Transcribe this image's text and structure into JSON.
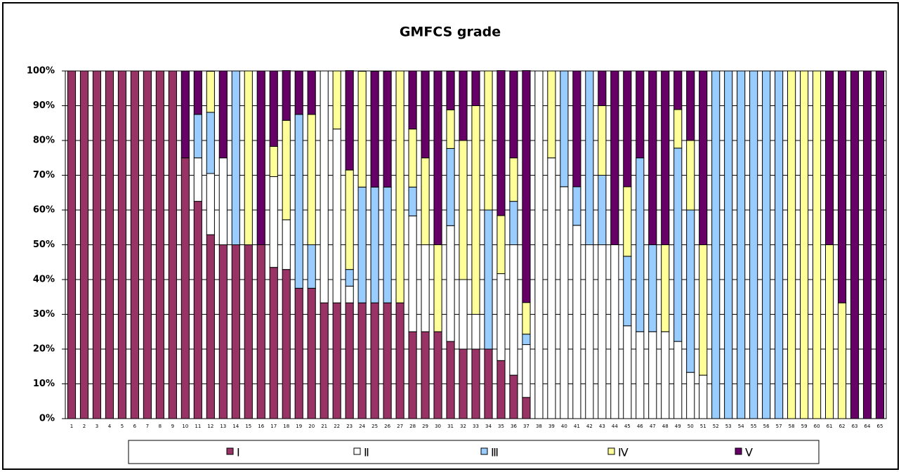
{
  "chart_data": {
    "type": "stacked_bar_100",
    "title": "GMFCS grade",
    "categories": [
      "1",
      "2",
      "3",
      "4",
      "5",
      "6",
      "7",
      "8",
      "9",
      "10",
      "11",
      "12",
      "13",
      "14",
      "15",
      "16",
      "17",
      "18",
      "19",
      "20",
      "21",
      "22",
      "23",
      "24",
      "25",
      "26",
      "27",
      "28",
      "29",
      "30",
      "31",
      "32",
      "33",
      "34",
      "35",
      "36",
      "37",
      "38",
      "39",
      "40",
      "41",
      "42",
      "43",
      "44",
      "45",
      "46",
      "47",
      "48",
      "49",
      "50",
      "51",
      "52",
      "53",
      "54",
      "55",
      "56",
      "57",
      "58",
      "59",
      "60",
      "61",
      "62",
      "63",
      "64",
      "65"
    ],
    "series": [
      {
        "name": "Ⅰ",
        "color": "#993366",
        "values": [
          100,
          100,
          100,
          100,
          100,
          100,
          100,
          100,
          100,
          75,
          62.5,
          52.9,
          50,
          50,
          50,
          50,
          43.5,
          42.9,
          37.5,
          37.5,
          33.3,
          33.3,
          33.3,
          33.3,
          33.3,
          33.3,
          33.3,
          25,
          25,
          25,
          22.2,
          20,
          20,
          20,
          16.7,
          12.5,
          6.1,
          0,
          0,
          0,
          0,
          0,
          0,
          0,
          0,
          0,
          0,
          0,
          0,
          0,
          0,
          0,
          0,
          0,
          0,
          0,
          0,
          0,
          0,
          0,
          0,
          0,
          0,
          0,
          0
        ]
      },
      {
        "name": "Ⅱ",
        "color": "#ffffff",
        "values": [
          0,
          0,
          0,
          0,
          0,
          0,
          0,
          0,
          0,
          0,
          12.5,
          17.6,
          25,
          0,
          0,
          0,
          26.1,
          14.3,
          0,
          0,
          66.7,
          50,
          4.8,
          0,
          0,
          0,
          0,
          33.3,
          25,
          0,
          33.3,
          20,
          10,
          0,
          25,
          37.5,
          15.2,
          100,
          75,
          66.7,
          55.6,
          50,
          50,
          50,
          26.7,
          25,
          25,
          25,
          22.2,
          13.3,
          12.5,
          0,
          0,
          0,
          0,
          0,
          0,
          0,
          0,
          0,
          0,
          0,
          0,
          0,
          0
        ]
      },
      {
        "name": "Ⅲ",
        "color": "#99ccff",
        "values": [
          0,
          0,
          0,
          0,
          0,
          0,
          0,
          0,
          0,
          0,
          12.5,
          17.6,
          0,
          50,
          0,
          0,
          0,
          0,
          50,
          12.5,
          0,
          0,
          4.8,
          33.3,
          33.3,
          33.3,
          0,
          8.3,
          0,
          0,
          22.2,
          0,
          0,
          40,
          0,
          12.5,
          3,
          0,
          0,
          33.3,
          11.1,
          50,
          20,
          0,
          20,
          50,
          25,
          0,
          55.6,
          46.7,
          0,
          100,
          100,
          100,
          100,
          100,
          100,
          0,
          0,
          0,
          0,
          0,
          0,
          0,
          0
        ]
      },
      {
        "name": "Ⅳ",
        "color": "#ffff99",
        "values": [
          0,
          0,
          0,
          0,
          0,
          0,
          0,
          0,
          0,
          0,
          0,
          11.8,
          0,
          0,
          50,
          0,
          8.7,
          28.6,
          0,
          37.5,
          0,
          16.7,
          28.6,
          33.3,
          0,
          0,
          66.7,
          16.7,
          25,
          25,
          11.1,
          40,
          60,
          40,
          16.7,
          12.5,
          9.1,
          0,
          25,
          0,
          0,
          0,
          20,
          0,
          20,
          0,
          0,
          25,
          11.1,
          20,
          37.5,
          0,
          0,
          0,
          0,
          0,
          0,
          100,
          100,
          100,
          50,
          33.3,
          0,
          0,
          0
        ]
      },
      {
        "name": "Ⅴ",
        "color": "#660066",
        "values": [
          0,
          0,
          0,
          0,
          0,
          0,
          0,
          0,
          0,
          25,
          12.5,
          0,
          25,
          0,
          0,
          50,
          21.7,
          14.3,
          12.5,
          12.5,
          0,
          0,
          28.6,
          0,
          33.3,
          33.3,
          0,
          16.7,
          25,
          50,
          11.1,
          20,
          10,
          0,
          41.7,
          25,
          66.7,
          0,
          0,
          0,
          33.3,
          0,
          10,
          50,
          33.3,
          25,
          50,
          50,
          11.1,
          20,
          50,
          0,
          0,
          0,
          0,
          0,
          0,
          0,
          0,
          0,
          50,
          66.7,
          100,
          100,
          100
        ]
      }
    ],
    "ylim": [
      0,
      100
    ],
    "yticks": [
      {
        "value": 0,
        "label": "0%"
      },
      {
        "value": 10,
        "label": "10%"
      },
      {
        "value": 20,
        "label": "20%"
      },
      {
        "value": 30,
        "label": "30%"
      },
      {
        "value": 40,
        "label": "40%"
      },
      {
        "value": 50,
        "label": "50%"
      },
      {
        "value": 60,
        "label": "60%"
      },
      {
        "value": 70,
        "label": "70%"
      },
      {
        "value": 80,
        "label": "80%"
      },
      {
        "value": 90,
        "label": "90%"
      },
      {
        "value": 100,
        "label": "100%"
      }
    ],
    "grid": true,
    "legend": "bottom"
  }
}
